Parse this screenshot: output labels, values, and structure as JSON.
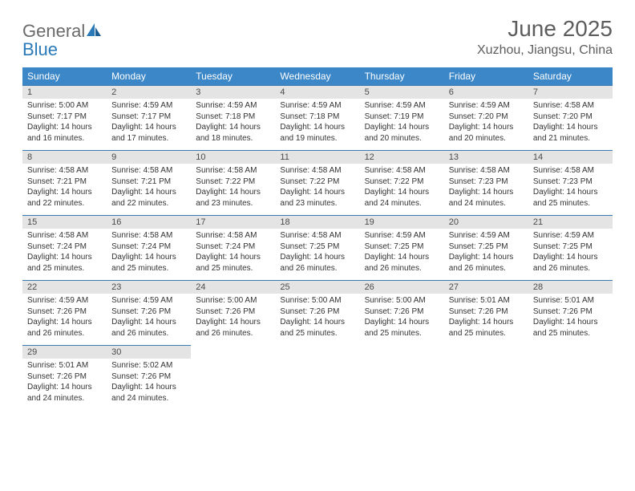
{
  "logo": {
    "word1": "General",
    "word2": "Blue"
  },
  "title": "June 2025",
  "location": "Xuzhou, Jiangsu, China",
  "colors": {
    "header_bg": "#3b87c8",
    "header_text": "#ffffff",
    "daynum_bg": "#e4e4e4",
    "row_border": "#3a7ab0",
    "body_text": "#333333",
    "title_text": "#5d5d5d",
    "logo_gray": "#6a6a6a",
    "logo_blue": "#2a7ab9"
  },
  "typography": {
    "title_fontsize": 28,
    "location_fontsize": 16,
    "dayheader_fontsize": 12,
    "daynum_fontsize": 11,
    "cell_fontsize": 10
  },
  "day_headers": [
    "Sunday",
    "Monday",
    "Tuesday",
    "Wednesday",
    "Thursday",
    "Friday",
    "Saturday"
  ],
  "weeks": [
    [
      {
        "n": "1",
        "sr": "Sunrise: 5:00 AM",
        "ss": "Sunset: 7:17 PM",
        "dl": "Daylight: 14 hours and 16 minutes."
      },
      {
        "n": "2",
        "sr": "Sunrise: 4:59 AM",
        "ss": "Sunset: 7:17 PM",
        "dl": "Daylight: 14 hours and 17 minutes."
      },
      {
        "n": "3",
        "sr": "Sunrise: 4:59 AM",
        "ss": "Sunset: 7:18 PM",
        "dl": "Daylight: 14 hours and 18 minutes."
      },
      {
        "n": "4",
        "sr": "Sunrise: 4:59 AM",
        "ss": "Sunset: 7:18 PM",
        "dl": "Daylight: 14 hours and 19 minutes."
      },
      {
        "n": "5",
        "sr": "Sunrise: 4:59 AM",
        "ss": "Sunset: 7:19 PM",
        "dl": "Daylight: 14 hours and 20 minutes."
      },
      {
        "n": "6",
        "sr": "Sunrise: 4:59 AM",
        "ss": "Sunset: 7:20 PM",
        "dl": "Daylight: 14 hours and 20 minutes."
      },
      {
        "n": "7",
        "sr": "Sunrise: 4:58 AM",
        "ss": "Sunset: 7:20 PM",
        "dl": "Daylight: 14 hours and 21 minutes."
      }
    ],
    [
      {
        "n": "8",
        "sr": "Sunrise: 4:58 AM",
        "ss": "Sunset: 7:21 PM",
        "dl": "Daylight: 14 hours and 22 minutes."
      },
      {
        "n": "9",
        "sr": "Sunrise: 4:58 AM",
        "ss": "Sunset: 7:21 PM",
        "dl": "Daylight: 14 hours and 22 minutes."
      },
      {
        "n": "10",
        "sr": "Sunrise: 4:58 AM",
        "ss": "Sunset: 7:22 PM",
        "dl": "Daylight: 14 hours and 23 minutes."
      },
      {
        "n": "11",
        "sr": "Sunrise: 4:58 AM",
        "ss": "Sunset: 7:22 PM",
        "dl": "Daylight: 14 hours and 23 minutes."
      },
      {
        "n": "12",
        "sr": "Sunrise: 4:58 AM",
        "ss": "Sunset: 7:22 PM",
        "dl": "Daylight: 14 hours and 24 minutes."
      },
      {
        "n": "13",
        "sr": "Sunrise: 4:58 AM",
        "ss": "Sunset: 7:23 PM",
        "dl": "Daylight: 14 hours and 24 minutes."
      },
      {
        "n": "14",
        "sr": "Sunrise: 4:58 AM",
        "ss": "Sunset: 7:23 PM",
        "dl": "Daylight: 14 hours and 25 minutes."
      }
    ],
    [
      {
        "n": "15",
        "sr": "Sunrise: 4:58 AM",
        "ss": "Sunset: 7:24 PM",
        "dl": "Daylight: 14 hours and 25 minutes."
      },
      {
        "n": "16",
        "sr": "Sunrise: 4:58 AM",
        "ss": "Sunset: 7:24 PM",
        "dl": "Daylight: 14 hours and 25 minutes."
      },
      {
        "n": "17",
        "sr": "Sunrise: 4:58 AM",
        "ss": "Sunset: 7:24 PM",
        "dl": "Daylight: 14 hours and 25 minutes."
      },
      {
        "n": "18",
        "sr": "Sunrise: 4:58 AM",
        "ss": "Sunset: 7:25 PM",
        "dl": "Daylight: 14 hours and 26 minutes."
      },
      {
        "n": "19",
        "sr": "Sunrise: 4:59 AM",
        "ss": "Sunset: 7:25 PM",
        "dl": "Daylight: 14 hours and 26 minutes."
      },
      {
        "n": "20",
        "sr": "Sunrise: 4:59 AM",
        "ss": "Sunset: 7:25 PM",
        "dl": "Daylight: 14 hours and 26 minutes."
      },
      {
        "n": "21",
        "sr": "Sunrise: 4:59 AM",
        "ss": "Sunset: 7:25 PM",
        "dl": "Daylight: 14 hours and 26 minutes."
      }
    ],
    [
      {
        "n": "22",
        "sr": "Sunrise: 4:59 AM",
        "ss": "Sunset: 7:26 PM",
        "dl": "Daylight: 14 hours and 26 minutes."
      },
      {
        "n": "23",
        "sr": "Sunrise: 4:59 AM",
        "ss": "Sunset: 7:26 PM",
        "dl": "Daylight: 14 hours and 26 minutes."
      },
      {
        "n": "24",
        "sr": "Sunrise: 5:00 AM",
        "ss": "Sunset: 7:26 PM",
        "dl": "Daylight: 14 hours and 26 minutes."
      },
      {
        "n": "25",
        "sr": "Sunrise: 5:00 AM",
        "ss": "Sunset: 7:26 PM",
        "dl": "Daylight: 14 hours and 25 minutes."
      },
      {
        "n": "26",
        "sr": "Sunrise: 5:00 AM",
        "ss": "Sunset: 7:26 PM",
        "dl": "Daylight: 14 hours and 25 minutes."
      },
      {
        "n": "27",
        "sr": "Sunrise: 5:01 AM",
        "ss": "Sunset: 7:26 PM",
        "dl": "Daylight: 14 hours and 25 minutes."
      },
      {
        "n": "28",
        "sr": "Sunrise: 5:01 AM",
        "ss": "Sunset: 7:26 PM",
        "dl": "Daylight: 14 hours and 25 minutes."
      }
    ],
    [
      {
        "n": "29",
        "sr": "Sunrise: 5:01 AM",
        "ss": "Sunset: 7:26 PM",
        "dl": "Daylight: 14 hours and 24 minutes."
      },
      {
        "n": "30",
        "sr": "Sunrise: 5:02 AM",
        "ss": "Sunset: 7:26 PM",
        "dl": "Daylight: 14 hours and 24 minutes."
      },
      null,
      null,
      null,
      null,
      null
    ]
  ]
}
